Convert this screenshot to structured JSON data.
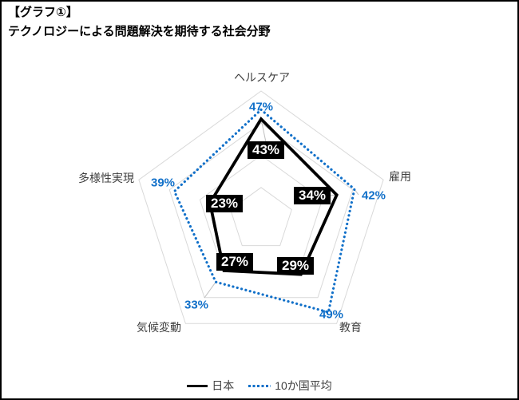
{
  "page": {
    "title_line1": "【グラフ①】",
    "title_line2": "テクノロジーによる問題解決を期待する社会分野"
  },
  "chart_data": {
    "type": "radar",
    "categories": [
      "ヘルスケア",
      "雇用",
      "教育",
      "気候変動",
      "多様性実現"
    ],
    "series": [
      {
        "name": "日本",
        "values": [
          43,
          34,
          29,
          27,
          23
        ],
        "labels": [
          "43%",
          "34%",
          "29%",
          "27%",
          "23%"
        ],
        "color": "#000000",
        "line_style": "solid"
      },
      {
        "name": "10か国平均",
        "values": [
          47,
          42,
          49,
          33,
          39
        ],
        "labels": [
          "47%",
          "42%",
          "49%",
          "33%",
          "39%"
        ],
        "color": "#1170C9",
        "line_style": "dotted"
      }
    ],
    "scale_max": 55,
    "ring_fractions": [
      0.25,
      0.5,
      0.75,
      1
    ],
    "grid_color": "#D9D9D9",
    "leader_line_color": "#BFBFBF",
    "legend_position": "bottom"
  }
}
